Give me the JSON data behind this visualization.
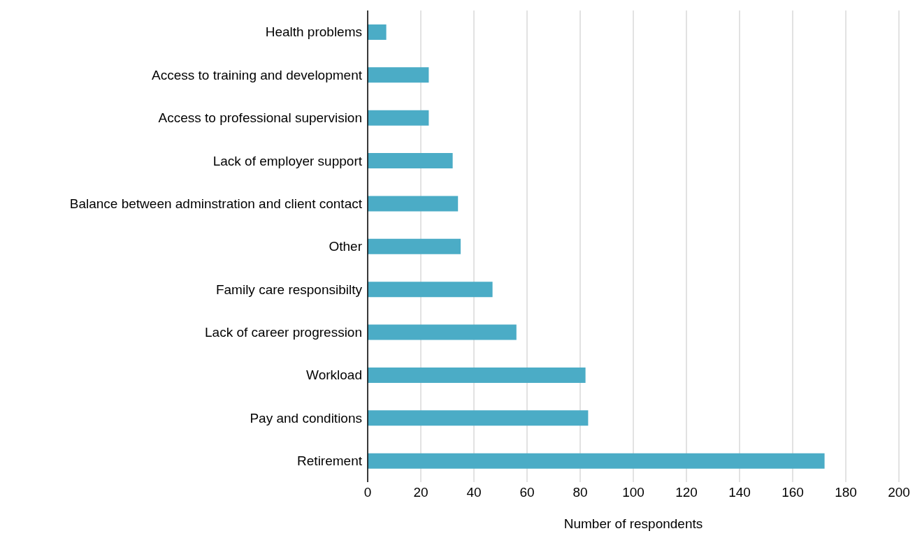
{
  "chart_data": {
    "type": "bar",
    "orientation": "horizontal",
    "xlabel": "Number of respondents",
    "categories": [
      "Health problems",
      "Access to training and development",
      "Access to professional supervision ",
      "Lack of employer support",
      "Balance between adminstration and client contact",
      "Other",
      "Family care responsibilty ",
      "Lack of career progression",
      "Workload",
      "Pay and conditions",
      "Retirement"
    ],
    "values": [
      7,
      23,
      23,
      32,
      34,
      35,
      47,
      56,
      82,
      83,
      172
    ],
    "color": "#4bacc6",
    "xlim": [
      0,
      200
    ],
    "xticks": [
      0,
      20,
      40,
      60,
      80,
      100,
      120,
      140,
      160,
      180,
      200
    ],
    "grid": "x",
    "legend": false
  }
}
